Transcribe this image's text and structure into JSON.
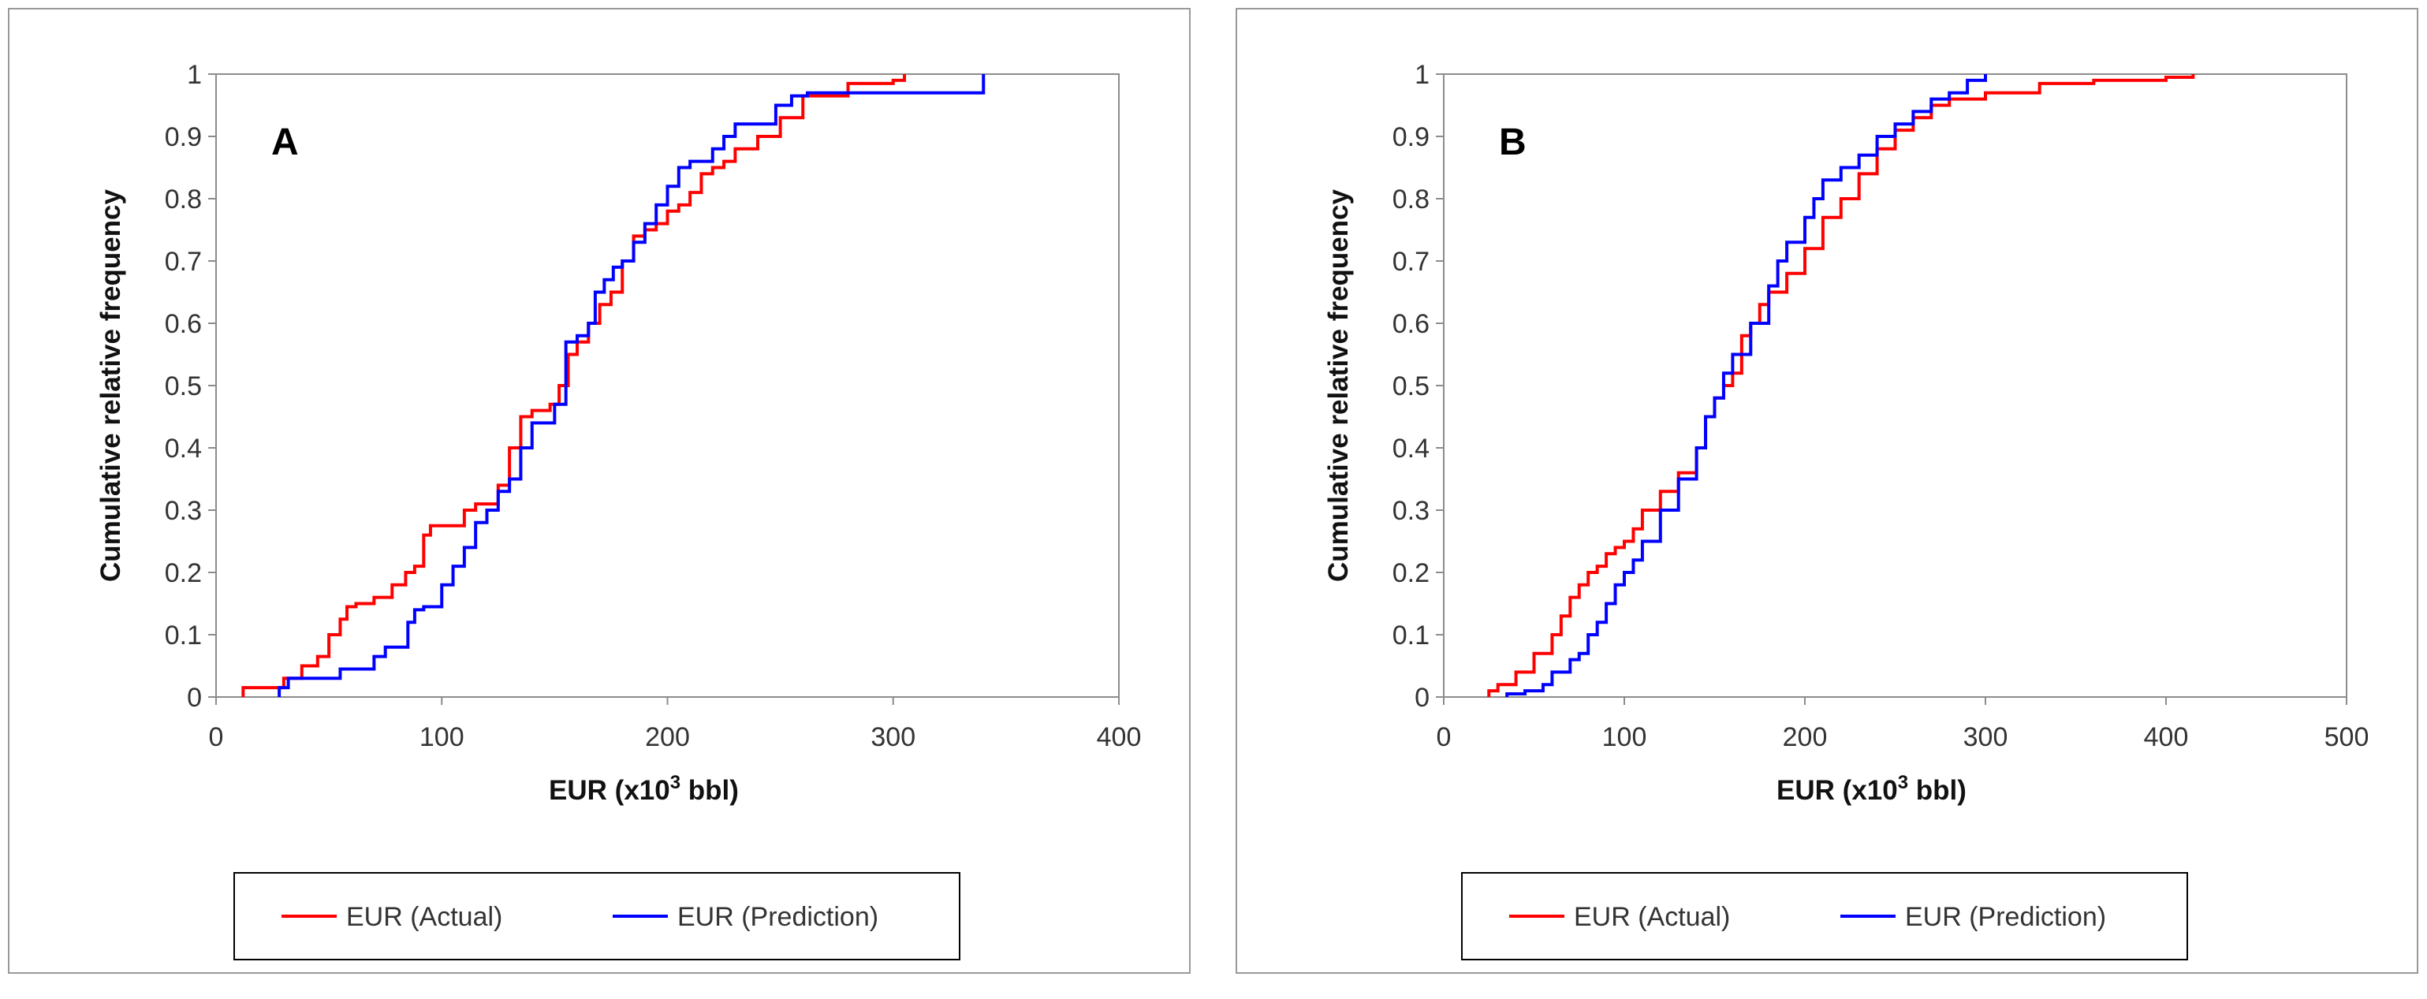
{
  "chart_data": [
    {
      "type": "line",
      "panel_label": "A",
      "xlabel": "EUR (x10",
      "xlabel_sup": "3",
      "xlabel_suffix": " bbl)",
      "ylabel": "Cumulative relative frequency",
      "xlim": [
        0,
        400
      ],
      "ylim": [
        0,
        1
      ],
      "x_ticks": [
        0,
        100,
        200,
        300,
        400
      ],
      "y_ticks": [
        0,
        0.1,
        0.2,
        0.3,
        0.4,
        0.5,
        0.6,
        0.7,
        0.8,
        0.9,
        1
      ],
      "x_tick_labels": [
        "0",
        "100",
        "200",
        "300",
        "400"
      ],
      "y_tick_labels": [
        "0",
        "0.1",
        "0.2",
        "0.3",
        "0.4",
        "0.5",
        "0.6",
        "0.7",
        "0.8",
        "0.9",
        "1"
      ],
      "legend_position": "bottom",
      "series": [
        {
          "name": "EUR (Actual)",
          "color": "#ff0000",
          "x": [
            12,
            30,
            38,
            45,
            50,
            55,
            58,
            62,
            70,
            78,
            84,
            88,
            92,
            95,
            100,
            110,
            115,
            125,
            130,
            135,
            140,
            148,
            152,
            156,
            160,
            165,
            170,
            175,
            180,
            185,
            190,
            195,
            200,
            205,
            210,
            215,
            220,
            225,
            230,
            240,
            250,
            260,
            280,
            300,
            305
          ],
          "y": [
            0.015,
            0.03,
            0.05,
            0.065,
            0.1,
            0.125,
            0.145,
            0.15,
            0.16,
            0.18,
            0.2,
            0.21,
            0.26,
            0.275,
            0.275,
            0.3,
            0.31,
            0.34,
            0.4,
            0.45,
            0.46,
            0.47,
            0.5,
            0.55,
            0.57,
            0.6,
            0.63,
            0.65,
            0.7,
            0.74,
            0.75,
            0.76,
            0.78,
            0.79,
            0.81,
            0.84,
            0.85,
            0.86,
            0.88,
            0.9,
            0.93,
            0.965,
            0.985,
            0.99,
            1.0
          ]
        },
        {
          "name": "EUR (Prediction)",
          "color": "#0000ff",
          "x": [
            28,
            32,
            40,
            55,
            70,
            75,
            80,
            85,
            88,
            92,
            100,
            105,
            110,
            115,
            120,
            125,
            130,
            135,
            140,
            150,
            155,
            160,
            165,
            168,
            172,
            176,
            180,
            185,
            190,
            195,
            200,
            205,
            210,
            220,
            225,
            230,
            240,
            248,
            255,
            262,
            300,
            340
          ],
          "y": [
            0.015,
            0.03,
            0.03,
            0.045,
            0.065,
            0.08,
            0.08,
            0.12,
            0.14,
            0.145,
            0.18,
            0.21,
            0.24,
            0.28,
            0.3,
            0.33,
            0.35,
            0.4,
            0.44,
            0.47,
            0.57,
            0.58,
            0.6,
            0.65,
            0.67,
            0.69,
            0.7,
            0.73,
            0.76,
            0.79,
            0.82,
            0.85,
            0.86,
            0.88,
            0.9,
            0.92,
            0.92,
            0.95,
            0.965,
            0.97,
            0.97,
            1.0
          ]
        }
      ]
    },
    {
      "type": "line",
      "panel_label": "B",
      "xlabel": "EUR (x10",
      "xlabel_sup": "3",
      "xlabel_suffix": " bbl)",
      "ylabel": "Cumulative relative frequency",
      "xlim": [
        0,
        500
      ],
      "ylim": [
        0,
        1
      ],
      "x_ticks": [
        0,
        100,
        200,
        300,
        400,
        500
      ],
      "y_ticks": [
        0,
        0.1,
        0.2,
        0.3,
        0.4,
        0.5,
        0.6,
        0.7,
        0.8,
        0.9,
        1
      ],
      "x_tick_labels": [
        "0",
        "100",
        "200",
        "300",
        "400",
        "500"
      ],
      "y_tick_labels": [
        "0",
        "0.1",
        "0.2",
        "0.3",
        "0.4",
        "0.5",
        "0.6",
        "0.7",
        "0.8",
        "0.9",
        "1"
      ],
      "legend_position": "bottom",
      "series": [
        {
          "name": "EUR (Actual)",
          "color": "#ff0000",
          "x": [
            25,
            30,
            40,
            50,
            60,
            65,
            70,
            75,
            80,
            85,
            90,
            95,
            100,
            105,
            110,
            120,
            130,
            140,
            145,
            150,
            155,
            160,
            165,
            170,
            175,
            180,
            190,
            200,
            210,
            220,
            230,
            240,
            250,
            260,
            270,
            280,
            300,
            330,
            360,
            400,
            415
          ],
          "y": [
            0.01,
            0.02,
            0.04,
            0.07,
            0.1,
            0.13,
            0.16,
            0.18,
            0.2,
            0.21,
            0.23,
            0.24,
            0.25,
            0.27,
            0.3,
            0.33,
            0.36,
            0.4,
            0.45,
            0.48,
            0.5,
            0.52,
            0.58,
            0.6,
            0.63,
            0.65,
            0.68,
            0.72,
            0.77,
            0.8,
            0.84,
            0.88,
            0.91,
            0.93,
            0.95,
            0.96,
            0.97,
            0.985,
            0.99,
            0.995,
            1.0
          ]
        },
        {
          "name": "EUR (Prediction)",
          "color": "#0000ff",
          "x": [
            35,
            45,
            55,
            60,
            70,
            75,
            80,
            85,
            90,
            95,
            100,
            105,
            110,
            120,
            130,
            140,
            145,
            150,
            155,
            160,
            170,
            180,
            185,
            190,
            200,
            205,
            210,
            220,
            230,
            240,
            250,
            260,
            270,
            280,
            290,
            300
          ],
          "y": [
            0.005,
            0.01,
            0.02,
            0.04,
            0.06,
            0.07,
            0.1,
            0.12,
            0.15,
            0.18,
            0.2,
            0.22,
            0.25,
            0.3,
            0.35,
            0.4,
            0.45,
            0.48,
            0.52,
            0.55,
            0.6,
            0.66,
            0.7,
            0.73,
            0.77,
            0.8,
            0.83,
            0.85,
            0.87,
            0.9,
            0.92,
            0.94,
            0.96,
            0.97,
            0.99,
            1.0
          ]
        }
      ]
    }
  ]
}
